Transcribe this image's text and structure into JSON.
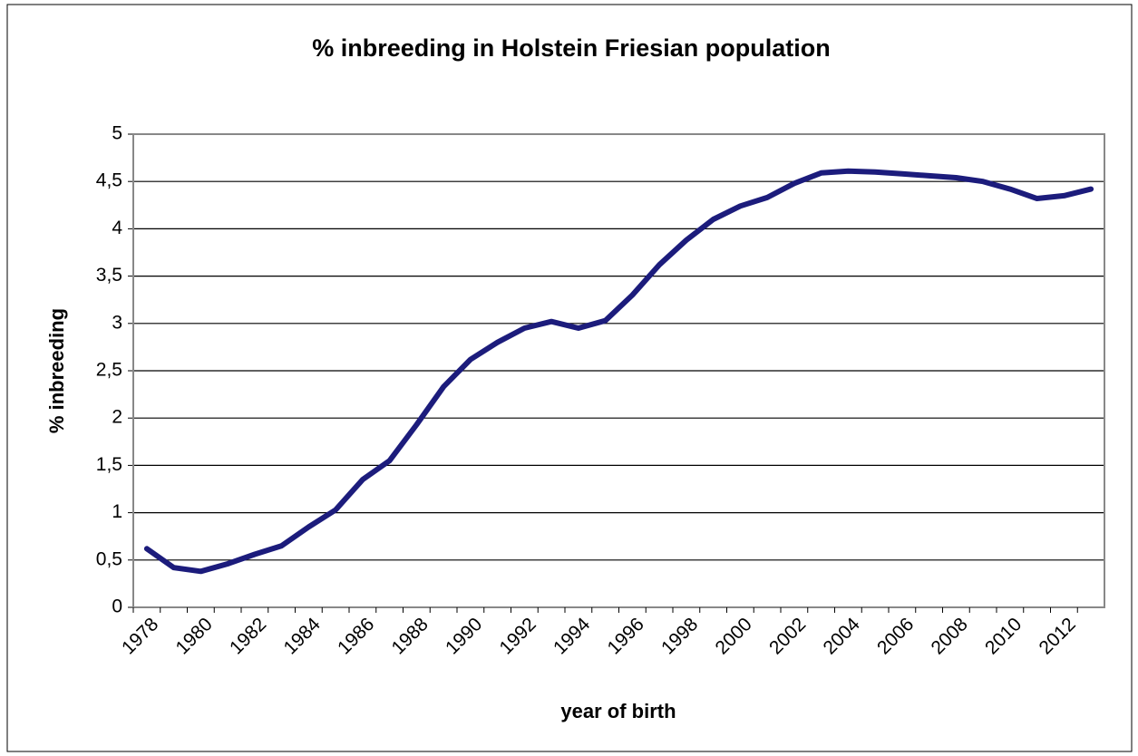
{
  "chart_data": {
    "type": "line",
    "title": "% inbreeding in Holstein Friesian population",
    "xlabel": "year of birth",
    "ylabel": "% inbreeding",
    "categories": [
      "1978",
      null,
      "1980",
      null,
      "1982",
      null,
      "1984",
      null,
      "1986",
      null,
      "1988",
      null,
      "1990",
      null,
      "1992",
      null,
      "1994",
      null,
      "1996",
      null,
      "1998",
      null,
      "2000",
      null,
      "2002",
      null,
      "2004",
      null,
      "2006",
      null,
      "2008",
      null,
      "2010",
      null,
      "2012",
      null
    ],
    "series": [
      {
        "name": "% inbreeding",
        "color": "#1c1c7c",
        "values": [
          0.62,
          0.42,
          0.38,
          0.46,
          0.56,
          0.65,
          0.85,
          1.03,
          1.35,
          1.55,
          1.93,
          2.33,
          2.62,
          2.8,
          2.95,
          3.02,
          2.95,
          3.03,
          3.3,
          3.62,
          3.88,
          4.1,
          4.24,
          4.33,
          4.48,
          4.59,
          4.61,
          4.6,
          4.58,
          4.56,
          4.54,
          4.5,
          4.42,
          4.32,
          4.35,
          4.42
        ]
      }
    ],
    "ylim": [
      0,
      5
    ],
    "yticks": [
      0,
      {
        "value": 0.5,
        "label": "0,5"
      },
      1,
      {
        "value": 1.5,
        "label": "1,5"
      },
      2,
      {
        "value": 2.5,
        "label": "2,5"
      },
      3,
      {
        "value": 3.5,
        "label": "3,5"
      },
      4,
      {
        "value": 4.5,
        "label": "4,5"
      },
      5
    ],
    "grid": true
  }
}
